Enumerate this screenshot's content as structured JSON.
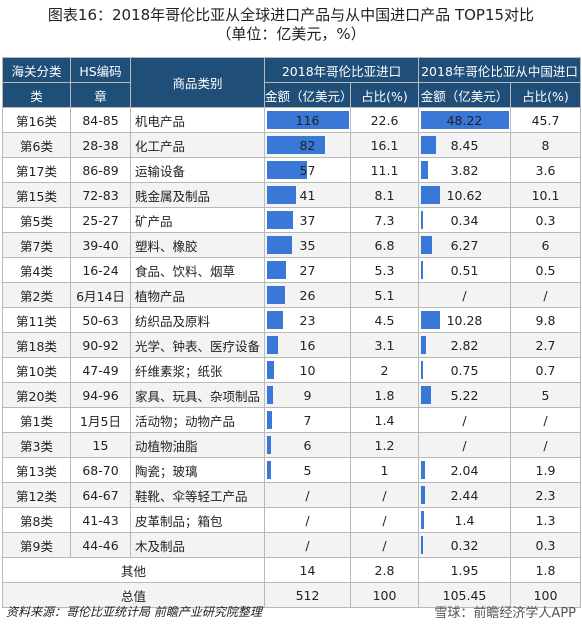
{
  "title_line1": "图表16：2018年哥伦比亚从全球进口产品与从中国进口产品 TOP15对比",
  "title_line2": "（单位：亿美元，%）",
  "headers": {
    "class_top": "海关分类",
    "class_bottom": "类",
    "hs_top": "HS编码",
    "hs_bottom": "章",
    "product": "商品类别",
    "global_group": "2018年哥伦比亚进口",
    "china_group": "2018年哥伦比亚从中国进口",
    "amount": "金额（亿美元）",
    "share": "占比(%)"
  },
  "rows": [
    {
      "cls": "第16类",
      "hs": "84-85",
      "name": "机电产品",
      "g_amt": "116",
      "g_share": "22.6",
      "c_amt": "48.22",
      "c_share": "45.7",
      "g_val": 116,
      "c_val": 48.22
    },
    {
      "cls": "第6类",
      "hs": "28-38",
      "name": "化工产品",
      "g_amt": "82",
      "g_share": "16.1",
      "c_amt": "8.45",
      "c_share": "8",
      "g_val": 82,
      "c_val": 8.45
    },
    {
      "cls": "第17类",
      "hs": "86-89",
      "name": "运输设备",
      "g_amt": "57",
      "g_share": "11.1",
      "c_amt": "3.82",
      "c_share": "3.6",
      "g_val": 57,
      "c_val": 3.82
    },
    {
      "cls": "第15类",
      "hs": "72-83",
      "name": "贱金属及制品",
      "g_amt": "41",
      "g_share": "8.1",
      "c_amt": "10.62",
      "c_share": "10.1",
      "g_val": 41,
      "c_val": 10.62
    },
    {
      "cls": "第5类",
      "hs": "25-27",
      "name": "矿产品",
      "g_amt": "37",
      "g_share": "7.3",
      "c_amt": "0.34",
      "c_share": "0.3",
      "g_val": 37,
      "c_val": 0.34
    },
    {
      "cls": "第7类",
      "hs": "39-40",
      "name": "塑料、橡胶",
      "g_amt": "35",
      "g_share": "6.8",
      "c_amt": "6.27",
      "c_share": "6",
      "g_val": 35,
      "c_val": 6.27
    },
    {
      "cls": "第4类",
      "hs": "16-24",
      "name": "食品、饮料、烟草",
      "g_amt": "27",
      "g_share": "5.3",
      "c_amt": "0.51",
      "c_share": "0.5",
      "g_val": 27,
      "c_val": 0.51
    },
    {
      "cls": "第2类",
      "hs": "6月14日",
      "name": "植物产品",
      "g_amt": "26",
      "g_share": "5.1",
      "c_amt": "/",
      "c_share": "/",
      "g_val": 26,
      "c_val": 0
    },
    {
      "cls": "第11类",
      "hs": "50-63",
      "name": "纺织品及原料",
      "g_amt": "23",
      "g_share": "4.5",
      "c_amt": "10.28",
      "c_share": "9.8",
      "g_val": 23,
      "c_val": 10.28
    },
    {
      "cls": "第18类",
      "hs": "90-92",
      "name": "光学、钟表、医疗设备",
      "g_amt": "16",
      "g_share": "3.1",
      "c_amt": "2.82",
      "c_share": "2.7",
      "g_val": 16,
      "c_val": 2.82
    },
    {
      "cls": "第10类",
      "hs": "47-49",
      "name": "纤维素浆；纸张",
      "g_amt": "10",
      "g_share": "2",
      "c_amt": "0.75",
      "c_share": "0.7",
      "g_val": 10,
      "c_val": 0.75
    },
    {
      "cls": "第20类",
      "hs": "94-96",
      "name": "家具、玩具、杂项制品",
      "g_amt": "9",
      "g_share": "1.8",
      "c_amt": "5.22",
      "c_share": "5",
      "g_val": 9,
      "c_val": 5.22
    },
    {
      "cls": "第1类",
      "hs": "1月5日",
      "name": "活动物；动物产品",
      "g_amt": "7",
      "g_share": "1.4",
      "c_amt": "/",
      "c_share": "/",
      "g_val": 7,
      "c_val": 0
    },
    {
      "cls": "第3类",
      "hs": "15",
      "name": "动植物油脂",
      "g_amt": "6",
      "g_share": "1.2",
      "c_amt": "/",
      "c_share": "/",
      "g_val": 6,
      "c_val": 0
    },
    {
      "cls": "第13类",
      "hs": "68-70",
      "name": "陶瓷；玻璃",
      "g_amt": "5",
      "g_share": "1",
      "c_amt": "2.04",
      "c_share": "1.9",
      "g_val": 5,
      "c_val": 2.04
    },
    {
      "cls": "第12类",
      "hs": "64-67",
      "name": "鞋靴、伞等轻工产品",
      "g_amt": "/",
      "g_share": "/",
      "c_amt": "2.44",
      "c_share": "2.3",
      "g_val": 0,
      "c_val": 2.44
    },
    {
      "cls": "第8类",
      "hs": "41-43",
      "name": "皮革制品；箱包",
      "g_amt": "/",
      "g_share": "/",
      "c_amt": "1.4",
      "c_share": "1.3",
      "g_val": 0,
      "c_val": 1.4
    },
    {
      "cls": "第9类",
      "hs": "44-46",
      "name": "木及制品",
      "g_amt": "/",
      "g_share": "/",
      "c_amt": "0.32",
      "c_share": "0.3",
      "g_val": 0,
      "c_val": 0.32
    }
  ],
  "other": {
    "label": "其他",
    "g_amt": "14",
    "g_share": "2.8",
    "c_amt": "1.95",
    "c_share": "1.8"
  },
  "total": {
    "label": "总值",
    "g_amt": "512",
    "g_share": "100",
    "c_amt": "105.45",
    "c_share": "100"
  },
  "source": "资料来源：哥伦比亚统计局 前瞻产业研究院整理",
  "watermark": "雪球：前瞻经济学人APP",
  "bar_color": "#3a78d8"
}
